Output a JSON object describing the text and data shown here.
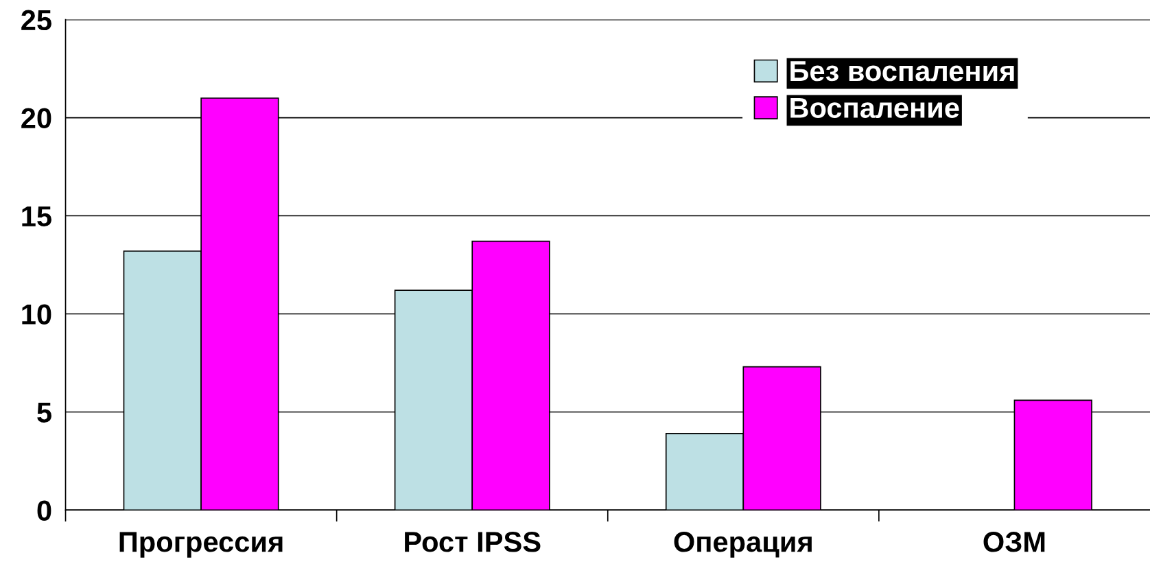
{
  "chart_data": {
    "type": "bar",
    "categories": [
      "Прогрессия",
      "Рост IPSS",
      "Операция",
      "ОЗМ"
    ],
    "series": [
      {
        "name": "Без воспаления",
        "color": "#bde0e4",
        "values": [
          13.2,
          11.2,
          3.9,
          null
        ]
      },
      {
        "name": "Воспаление",
        "color": "#ff00ff",
        "values": [
          21.0,
          13.7,
          7.3,
          5.6
        ]
      }
    ],
    "ylim": [
      0,
      25
    ],
    "yticks": [
      0,
      5,
      10,
      15,
      20,
      25
    ],
    "grid": "y",
    "legend": "top right"
  }
}
